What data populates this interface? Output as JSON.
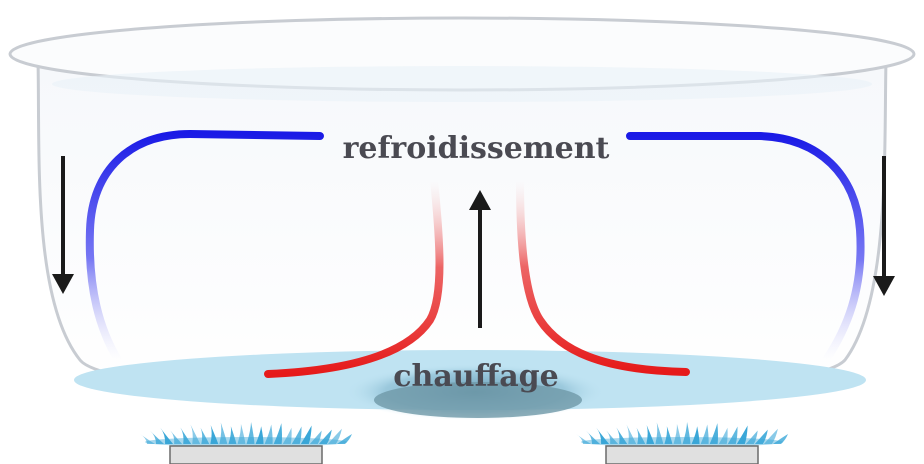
{
  "labels": {
    "top": "refroidissement",
    "bottom": "chauffage"
  },
  "colors": {
    "cooling": "#1a1ae6",
    "heating": "#e61a1a",
    "water": "#bfe3f2",
    "flame": "#3aa7d8",
    "arrow": "#1a1a1a",
    "pot_outline": "#c8ccd2",
    "burner": "#e0e0e0"
  },
  "icons": {
    "arrows": [
      "arrow-down-icon",
      "arrow-up-icon",
      "arrow-down-icon"
    ],
    "burners": [
      "flame-icon",
      "flame-icon"
    ]
  }
}
